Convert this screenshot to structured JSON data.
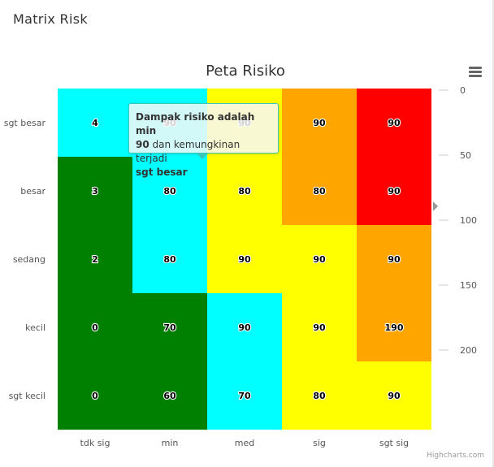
{
  "panel_title": "Matrix Risk",
  "chart_data": {
    "type": "heatmap",
    "title": "Peta Risiko",
    "x_categories": [
      "tdk sig",
      "min",
      "med",
      "sig",
      "sgt sig"
    ],
    "y_categories": [
      "sgt besar",
      "besar",
      "sedang",
      "kecil",
      "sgt kecil"
    ],
    "cells": [
      {
        "x": 0,
        "y": 0,
        "value": 4,
        "color": "#00ffff"
      },
      {
        "x": 1,
        "y": 0,
        "value": 90,
        "color": "#00ffff"
      },
      {
        "x": 2,
        "y": 0,
        "value": 90,
        "color": "#ffff00"
      },
      {
        "x": 3,
        "y": 0,
        "value": 90,
        "color": "#ffa500"
      },
      {
        "x": 4,
        "y": 0,
        "value": 90,
        "color": "#ff0000"
      },
      {
        "x": 0,
        "y": 1,
        "value": 3,
        "color": "#008000"
      },
      {
        "x": 1,
        "y": 1,
        "value": 80,
        "color": "#00ffff"
      },
      {
        "x": 2,
        "y": 1,
        "value": 80,
        "color": "#ffff00"
      },
      {
        "x": 3,
        "y": 1,
        "value": 80,
        "color": "#ffa500"
      },
      {
        "x": 4,
        "y": 1,
        "value": 90,
        "color": "#ff0000"
      },
      {
        "x": 0,
        "y": 2,
        "value": 2,
        "color": "#008000"
      },
      {
        "x": 1,
        "y": 2,
        "value": 80,
        "color": "#00ffff"
      },
      {
        "x": 2,
        "y": 2,
        "value": 90,
        "color": "#ffff00"
      },
      {
        "x": 3,
        "y": 2,
        "value": 90,
        "color": "#ffff00"
      },
      {
        "x": 4,
        "y": 2,
        "value": 90,
        "color": "#ffa500"
      },
      {
        "x": 0,
        "y": 3,
        "value": 0,
        "color": "#008000"
      },
      {
        "x": 1,
        "y": 3,
        "value": 70,
        "color": "#008000"
      },
      {
        "x": 2,
        "y": 3,
        "value": 90,
        "color": "#00ffff"
      },
      {
        "x": 3,
        "y": 3,
        "value": 90,
        "color": "#ffff00"
      },
      {
        "x": 4,
        "y": 3,
        "value": 190,
        "color": "#ffa500"
      },
      {
        "x": 0,
        "y": 4,
        "value": 0,
        "color": "#008000"
      },
      {
        "x": 1,
        "y": 4,
        "value": 60,
        "color": "#008000"
      },
      {
        "x": 2,
        "y": 4,
        "value": 70,
        "color": "#00ffff"
      },
      {
        "x": 3,
        "y": 4,
        "value": 80,
        "color": "#ffff00"
      },
      {
        "x": 4,
        "y": 4,
        "value": 90,
        "color": "#ffff00"
      }
    ],
    "right_axis": {
      "ticks": [
        0,
        50,
        100,
        150,
        200
      ],
      "range": [
        0,
        262.5
      ]
    }
  },
  "tooltip": {
    "line1_bold": "Dampak risiko adalah min",
    "line2_bold": "90",
    "line2_rest": " dan kemungkinan terjadi",
    "line3_bold": "sgt besar"
  },
  "credits": "Highcharts.com"
}
